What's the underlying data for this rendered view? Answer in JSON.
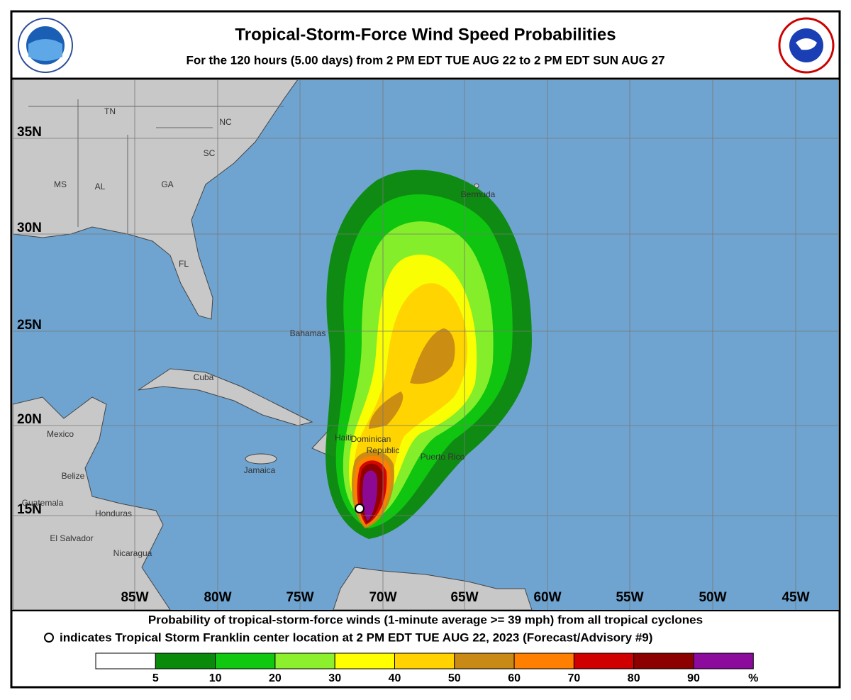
{
  "header": {
    "title": "Tropical-Storm-Force Wind Speed Probabilities",
    "subtitle": "For the 120 hours (5.00 days) from 2 PM EDT TUE AUG 22 to 2 PM EDT SUN AUG 27"
  },
  "map": {
    "longitude_labels": [
      "85W",
      "80W",
      "75W",
      "70W",
      "65W",
      "60W",
      "55W",
      "50W",
      "45W"
    ],
    "latitude_labels": [
      "35N",
      "30N",
      "25N",
      "20N",
      "15N"
    ],
    "place_labels": [
      "TN",
      "NC",
      "SC",
      "MS",
      "AL",
      "GA",
      "FL",
      "Bermuda",
      "Bahamas",
      "Cuba",
      "Mexico",
      "Haiti",
      "Dominican",
      "Republic",
      "Puerto Rico",
      "Jamaica",
      "Belize",
      "Guatemala",
      "Honduras",
      "El Salvador",
      "Nicaragua"
    ]
  },
  "footer": {
    "line1": "Probability of tropical-storm-force winds (1-minute average >= 39 mph) from all tropical cyclones",
    "line2": "indicates Tropical Storm Franklin center location at 2 PM EDT TUE AUG 22, 2023 (Forecast/Advisory #9)",
    "scale": {
      "labels": [
        "5",
        "10",
        "20",
        "30",
        "40",
        "50",
        "60",
        "70",
        "80",
        "90",
        "%"
      ],
      "colors": [
        "#ffffff",
        "#0a8a0a",
        "#10c810",
        "#8cf02c",
        "#ffff00",
        "#ffd200",
        "#c88a14",
        "#ff8000",
        "#d00000",
        "#8c0000",
        "#8c0a9c"
      ]
    }
  }
}
